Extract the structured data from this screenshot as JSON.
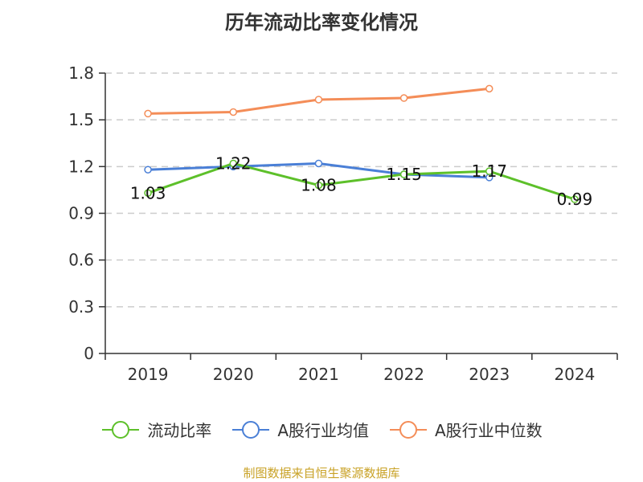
{
  "chart_data": {
    "type": "line",
    "title": "历年流动比率变化情况",
    "categories": [
      "2019",
      "2020",
      "2021",
      "2022",
      "2023",
      "2024"
    ],
    "ylim": [
      0,
      1.8
    ],
    "yticks": [
      "0",
      "0.3",
      "0.6",
      "0.9",
      "1.2",
      "1.5",
      "1.8"
    ],
    "grid": true,
    "legend_position": "bottom",
    "series": [
      {
        "name": "流动比率",
        "color": "#5dc02a",
        "values": [
          1.03,
          1.22,
          1.08,
          1.15,
          1.17,
          0.99
        ],
        "labels": [
          "1.03",
          "1.22",
          "1.08",
          "1.15",
          "1.17",
          "0.99"
        ]
      },
      {
        "name": "A股行业均值",
        "color": "#4a7fd6",
        "values": [
          1.18,
          1.2,
          1.22,
          1.15,
          1.13,
          null
        ]
      },
      {
        "name": "A股行业中位数",
        "color": "#f48d58",
        "values": [
          1.54,
          1.55,
          1.63,
          1.64,
          1.7,
          null
        ]
      }
    ]
  },
  "source": "制图数据来自恒生聚源数据库"
}
